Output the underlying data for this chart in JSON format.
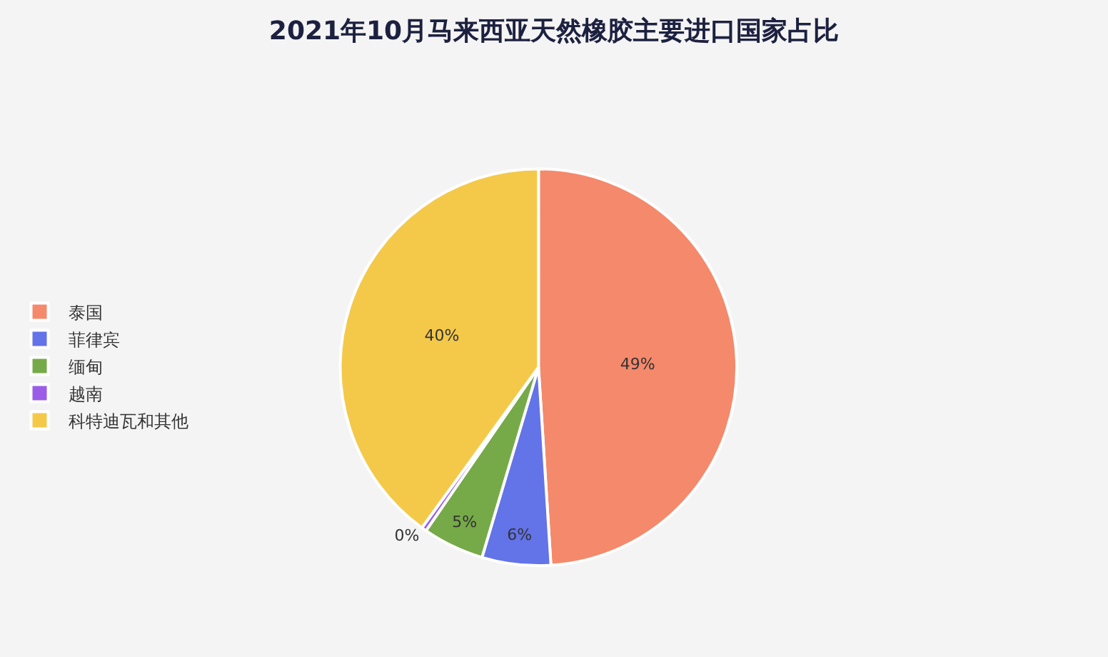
{
  "chart_data": {
    "type": "pie",
    "title": "2021年10月马来西亚天然橡胶主要进口国家占比",
    "categories": [
      "泰国",
      "菲律宾",
      "缅甸",
      "越南",
      "科特迪瓦和其他"
    ],
    "values": [
      49.0,
      5.6,
      5.0,
      0.4,
      40.0
    ],
    "value_labels": [
      "49%",
      "6%",
      "5%",
      "0%",
      "40%"
    ],
    "colors": [
      "#f5896b",
      "#6373e8",
      "#76aa48",
      "#9b5ce8",
      "#f4c94a"
    ],
    "legend": "left"
  }
}
